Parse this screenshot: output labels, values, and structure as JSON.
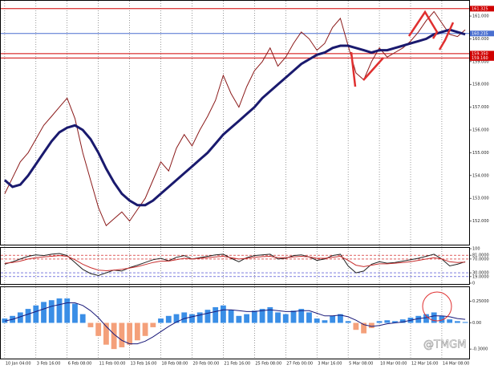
{
  "chart_data": [
    {
      "type": "line",
      "ylim": [
        151.0,
        161.6
      ],
      "yticks": [
        {
          "value": 152,
          "label": "152.000"
        },
        {
          "value": 153,
          "label": "153.000"
        },
        {
          "value": 154,
          "label": "154.000"
        },
        {
          "value": 155,
          "label": "155.000"
        },
        {
          "value": 156,
          "label": "156.000"
        },
        {
          "value": 157,
          "label": "157.000"
        },
        {
          "value": 158,
          "label": "158.000"
        },
        {
          "value": 159,
          "label": "159.000"
        },
        {
          "value": 160,
          "label": "160.000"
        },
        {
          "value": 161,
          "label": "161.000"
        }
      ],
      "series": [
        {
          "color": "#8b1a1a",
          "values": [
            153.2,
            153.9,
            154.6,
            155.0,
            155.6,
            156.2,
            156.6,
            157.0,
            157.4,
            156.5,
            155.0,
            153.8,
            152.6,
            151.8,
            152.1,
            152.4,
            152.0,
            152.5,
            153.0,
            153.8,
            154.6,
            154.2,
            155.2,
            155.8,
            155.3,
            156.0,
            156.6,
            157.3,
            158.4,
            157.6,
            157.0,
            157.9,
            158.6,
            159.0,
            159.6,
            158.8,
            159.2,
            159.8,
            160.3,
            160.0,
            159.5,
            159.8,
            160.5,
            160.9,
            159.7,
            158.5,
            158.2,
            159.0,
            159.6,
            159.2,
            159.4,
            159.6,
            159.9,
            160.3,
            160.8,
            161.2,
            160.7,
            160.2,
            160.1,
            160.4
          ]
        },
        {
          "color": "#1a1a6e",
          "values": [
            153.8,
            153.5,
            153.6,
            154.0,
            154.5,
            155.0,
            155.5,
            155.9,
            156.1,
            156.2,
            156.0,
            155.6,
            155.0,
            154.3,
            153.7,
            153.2,
            152.9,
            152.7,
            152.7,
            152.9,
            153.2,
            153.5,
            153.8,
            154.1,
            154.4,
            154.7,
            155.0,
            155.4,
            155.8,
            156.1,
            156.4,
            156.7,
            157.0,
            157.4,
            157.7,
            158.0,
            158.3,
            158.6,
            158.9,
            159.1,
            159.3,
            159.4,
            159.6,
            159.7,
            159.7,
            159.6,
            159.5,
            159.4,
            159.5,
            159.5,
            159.6,
            159.7,
            159.8,
            159.9,
            160.0,
            160.2,
            160.3,
            160.4,
            160.3,
            160.2
          ]
        }
      ],
      "hlines": [
        {
          "value": 161.325,
          "label": "161.325",
          "color": "#d00000"
        },
        {
          "value": 160.235,
          "label": "160.235",
          "color": "#4a6fd0"
        },
        {
          "value": 159.35,
          "label": "159.350",
          "color": "#d00000"
        },
        {
          "value": 159.16,
          "label": "159.160",
          "color": "#d00000"
        }
      ]
    },
    {
      "type": "line",
      "ylim": [
        0,
        100
      ],
      "yticks": [
        100,
        {
          "value": 81,
          "label": "81.0000"
        },
        {
          "value": 70,
          "label": "70.0000"
        },
        {
          "value": 30,
          "label": "30.0000"
        },
        {
          "value": 19,
          "label": "19.0000"
        },
        0
      ],
      "series": [
        {
          "color": "#222222",
          "values": [
            55,
            62,
            70,
            78,
            82,
            80,
            84,
            86,
            80,
            60,
            40,
            28,
            22,
            30,
            38,
            35,
            45,
            52,
            60,
            68,
            72,
            65,
            75,
            80,
            70,
            74,
            78,
            82,
            84,
            72,
            62,
            74,
            80,
            82,
            84,
            70,
            72,
            80,
            82,
            76,
            66,
            70,
            80,
            84,
            50,
            30,
            35,
            55,
            62,
            58,
            60,
            64,
            68,
            72,
            78,
            84,
            70,
            50,
            55,
            62
          ]
        },
        {
          "color": "#c83030",
          "values": [
            58,
            60,
            64,
            70,
            74,
            76,
            78,
            80,
            78,
            68,
            55,
            45,
            38,
            36,
            38,
            40,
            44,
            48,
            54,
            60,
            64,
            64,
            68,
            72,
            70,
            72,
            74,
            76,
            78,
            74,
            70,
            72,
            75,
            77,
            78,
            74,
            74,
            76,
            78,
            76,
            72,
            72,
            75,
            78,
            66,
            52,
            48,
            52,
            56,
            56,
            58,
            60,
            62,
            66,
            70,
            74,
            70,
            62,
            60,
            61
          ]
        }
      ]
    },
    {
      "type": "bar",
      "ylim": [
        -0.4,
        0.4
      ],
      "yticks": [
        {
          "value": 0.25,
          "label": "0.25000"
        },
        {
          "value": 0,
          "label": "0.00"
        },
        {
          "value": -0.3,
          "label": "-0.3000"
        }
      ],
      "color": "#3a8ee6",
      "negative_color": "#f4a07a",
      "values": [
        0.05,
        0.08,
        0.12,
        0.16,
        0.2,
        0.24,
        0.26,
        0.28,
        0.28,
        0.22,
        0.1,
        -0.05,
        -0.15,
        -0.25,
        -0.3,
        -0.28,
        -0.25,
        -0.2,
        -0.15,
        -0.05,
        0.05,
        0.08,
        0.1,
        0.12,
        0.1,
        0.12,
        0.15,
        0.18,
        0.2,
        0.15,
        0.08,
        0.1,
        0.14,
        0.16,
        0.18,
        0.12,
        0.1,
        0.14,
        0.16,
        0.12,
        0.05,
        0.03,
        0.08,
        0.1,
        0.02,
        -0.08,
        -0.12,
        -0.06,
        0.02,
        0.03,
        0.02,
        0.04,
        0.06,
        0.08,
        0.1,
        0.12,
        0.08,
        0.04,
        0.02,
        0.01
      ],
      "series": [
        {
          "color": "#1a1a7a",
          "values": [
            0.02,
            0.04,
            0.07,
            0.1,
            0.13,
            0.16,
            0.19,
            0.21,
            0.23,
            0.23,
            0.2,
            0.14,
            0.06,
            -0.04,
            -0.13,
            -0.2,
            -0.24,
            -0.24,
            -0.21,
            -0.16,
            -0.1,
            -0.04,
            0.01,
            0.05,
            0.07,
            0.09,
            0.11,
            0.13,
            0.15,
            0.15,
            0.14,
            0.13,
            0.13,
            0.14,
            0.15,
            0.14,
            0.13,
            0.13,
            0.14,
            0.14,
            0.11,
            0.08,
            0.08,
            0.09,
            0.07,
            0.03,
            -0.02,
            -0.04,
            -0.03,
            -0.01,
            0.0,
            0.01,
            0.03,
            0.05,
            0.06,
            0.08,
            0.08,
            0.07,
            0.05,
            0.04
          ]
        }
      ],
      "categories": [
        "10 Jan 04:00",
        null,
        null,
        null,
        "3 Feb 16:00",
        null,
        null,
        null,
        "6 Feb 08:00",
        null,
        null,
        null,
        "11 Feb 00:00",
        null,
        null,
        null,
        "13 Feb 16:00",
        null,
        null,
        null,
        "18 Feb 08:00",
        null,
        null,
        null,
        "20 Feb 00:00",
        null,
        null,
        null,
        "21 Feb 16:00",
        null,
        null,
        null,
        "25 Feb 08:00",
        null,
        null,
        null,
        "27 Feb 00:00",
        null,
        null,
        null,
        "3 Mar 16:00",
        null,
        null,
        null,
        "5 Mar 08:00",
        null,
        null,
        null,
        "10 Mar 00:00",
        null,
        null,
        null,
        "12 Mar 16:00",
        null,
        null,
        null,
        "14 Mar 08:00",
        null,
        null,
        null
      ],
      "watermark": "@TMGM"
    }
  ]
}
